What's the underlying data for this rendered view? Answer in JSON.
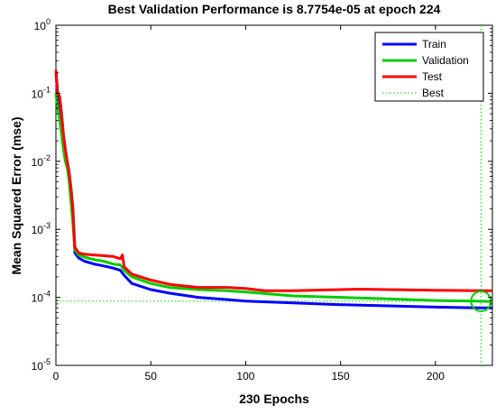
{
  "chart_data": {
    "type": "line",
    "title": "Best Validation Performance is 8.7754e-05 at epoch 224",
    "xlabel": "230 Epochs",
    "ylabel": "Mean Squared Error  (mse)",
    "yscale": "log",
    "xlim": [
      0,
      230
    ],
    "ylim": [
      1e-05,
      1
    ],
    "xticks": [
      0,
      50,
      100,
      150,
      200
    ],
    "yticks": [
      {
        "value": 1.0,
        "base": "10",
        "exp": "0"
      },
      {
        "value": 0.1,
        "base": "10",
        "exp": "-1"
      },
      {
        "value": 0.01,
        "base": "10",
        "exp": "-2"
      },
      {
        "value": 0.001,
        "base": "10",
        "exp": "-3"
      },
      {
        "value": 0.0001,
        "base": "10",
        "exp": "-4"
      },
      {
        "value": 1e-05,
        "base": "10",
        "exp": "-5"
      }
    ],
    "legend_position": "top-right",
    "series": [
      {
        "name": "Train",
        "color": "#0000ff",
        "x": [
          0,
          1,
          2,
          3,
          4,
          5,
          6,
          7,
          8,
          9,
          10,
          12,
          15,
          20,
          25,
          30,
          34,
          36,
          40,
          50,
          60,
          75,
          90,
          100,
          125,
          150,
          175,
          200,
          224,
          230
        ],
        "y": [
          0.2,
          0.09,
          0.07,
          0.04,
          0.02,
          0.012,
          0.009,
          0.006,
          0.003,
          0.0015,
          0.00045,
          0.00038,
          0.00034,
          0.00031,
          0.00029,
          0.00027,
          0.00025,
          0.00021,
          0.00016,
          0.00013,
          0.000115,
          0.0001,
          9.3e-05,
          8.8e-05,
          8.3e-05,
          7.8e-05,
          7.5e-05,
          7.2e-05,
          7e-05,
          7e-05
        ]
      },
      {
        "name": "Validation",
        "color": "#00cc00",
        "x": [
          0,
          1,
          2,
          3,
          4,
          5,
          6,
          7,
          8,
          9,
          10,
          12,
          15,
          20,
          25,
          30,
          34,
          36,
          40,
          50,
          60,
          75,
          90,
          100,
          125,
          150,
          175,
          200,
          224,
          230
        ],
        "y": [
          0.1,
          0.06,
          0.04,
          0.025,
          0.015,
          0.01,
          0.008,
          0.005,
          0.0025,
          0.0012,
          0.0005,
          0.00042,
          0.00039,
          0.00036,
          0.00034,
          0.00031,
          0.0003,
          0.00025,
          0.0002,
          0.00016,
          0.00014,
          0.00013,
          0.000125,
          0.00012,
          0.000105,
          0.0001,
          9.5e-05,
          9e-05,
          8.7754e-05,
          8.7e-05
        ]
      },
      {
        "name": "Test",
        "color": "#ff0000",
        "x": [
          0,
          1,
          2,
          3,
          4,
          5,
          6,
          7,
          8,
          9,
          10,
          12,
          15,
          20,
          25,
          30,
          34,
          35,
          36,
          40,
          50,
          60,
          75,
          90,
          100,
          110,
          125,
          150,
          160,
          175,
          200,
          224,
          230
        ],
        "y": [
          0.22,
          0.1,
          0.09,
          0.05,
          0.025,
          0.015,
          0.01,
          0.007,
          0.004,
          0.002,
          0.00055,
          0.00045,
          0.00043,
          0.00042,
          0.00041,
          0.0004,
          0.00037,
          0.00042,
          0.00028,
          0.00022,
          0.00018,
          0.000155,
          0.00014,
          0.00014,
          0.000135,
          0.000125,
          0.000125,
          0.00013,
          0.000132,
          0.00013,
          0.000127,
          0.000125,
          0.000125
        ]
      },
      {
        "name": "Best",
        "color": "#00cc00",
        "style": "dotted",
        "best_x": 224,
        "best_y": 8.7754e-05
      }
    ]
  }
}
